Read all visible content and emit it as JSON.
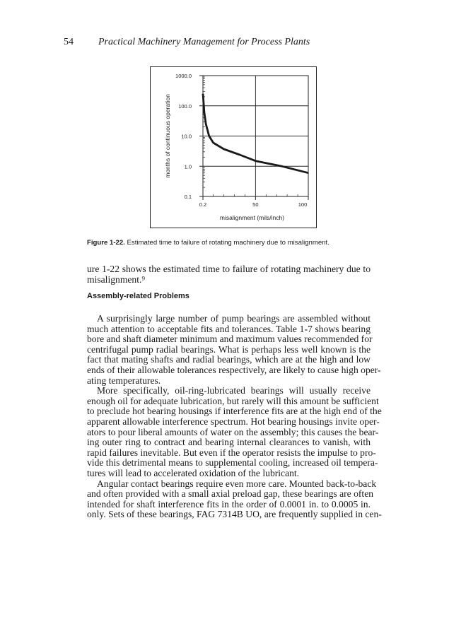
{
  "header": {
    "page_number": "54",
    "running_title": "Practical Machinery Management for Process Plants"
  },
  "chart_data": {
    "type": "line",
    "title": "",
    "xlabel": "misalignment (mils/inch)",
    "ylabel": "months of continuous operation",
    "x_tick_labels": [
      "0.2",
      "50",
      "100"
    ],
    "x_ticks": [
      0.2,
      50,
      100
    ],
    "xlim": [
      0.2,
      100
    ],
    "y_tick_labels": [
      "1000.0",
      "100.0",
      "10.0",
      "1.0",
      "0.1"
    ],
    "y_ticks": [
      1000,
      100,
      10,
      1,
      0.1
    ],
    "ylim": [
      0.1,
      1000
    ],
    "y_scale": "log",
    "grid": true,
    "series": [
      {
        "x": [
          0.2,
          1.5,
          3,
          6,
          10,
          20,
          35,
          50,
          75,
          100
        ],
        "y": [
          250,
          60,
          25,
          10,
          6,
          3.7,
          2.4,
          1.5,
          1.0,
          0.6
        ]
      }
    ],
    "color": "#1a1a1a"
  },
  "caption": {
    "label": "Figure 1-22.",
    "text": " Estimated time to failure of rotating machinery due to misalignment."
  },
  "intro_lines": [
    "ure 1-22 shows the estimated time to failure of rotating machinery due to",
    "misalignment.⁹"
  ],
  "section_heading": "Assembly-related Problems",
  "body_lines": [
    "A surprisingly large number of pump bearings are assembled without",
    "much attention to acceptable fits and tolerances. Table 1-7 shows bearing",
    "bore and shaft diameter minimum and maximum values recommended for",
    "centrifugal pump radial bearings. What is perhaps less well known is the",
    "fact that mating shafts and radial bearings, which are at the high and low",
    "ends of their allowable tolerances respectively, are likely to cause high oper-",
    "ating temperatures.",
    "More specifically, oil-ring-lubricated bearings will usually receive",
    "enough oil for adequate lubrication, but rarely will this amount be sufficient",
    "to preclude hot bearing housings if interference fits are at the high end of the",
    "apparent allowable interference spectrum. Hot bearing housings invite oper-",
    "ators to pour liberal amounts of water on the assembly; this causes the bear-",
    "ing outer ring to contract and bearing internal clearances to vanish, with",
    "rapid failures inevitable. But even if the operator resists the impulse to pro-",
    "vide this detrimental means to supplemental cooling, increased oil tempera-",
    "tures will lead to accelerated oxidation of the lubricant.",
    "Angular contact bearings require even more care. Mounted back-to-back",
    "and often provided with a small axial preload gap, these bearings are often",
    "intended for shaft interference fits in the order of  0.0001 in. to 0.0005 in.",
    "only. Sets of these bearings, FAG 7314B UO, are frequently supplied in cen-"
  ]
}
